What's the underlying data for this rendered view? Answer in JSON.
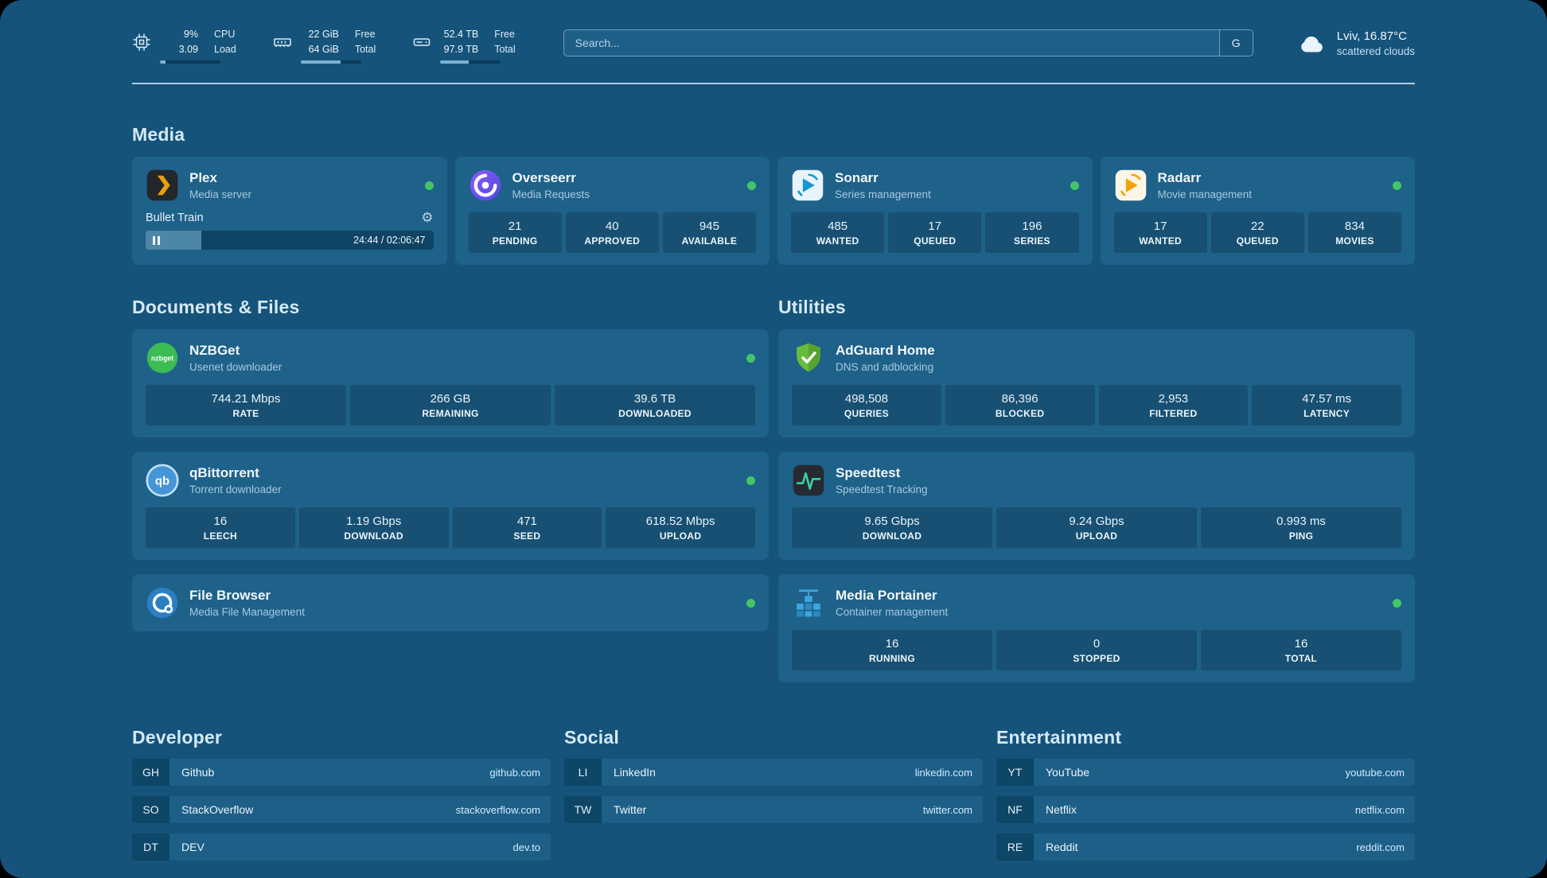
{
  "header": {
    "cpu": {
      "value_top": "9%",
      "value_bottom": "3.09",
      "label_top": "CPU",
      "label_bottom": "Load",
      "progress": 9
    },
    "memory": {
      "value_top": "22 GiB",
      "value_bottom": "64 GiB",
      "label_top": "Free",
      "label_bottom": "Total",
      "progress": 66
    },
    "disk": {
      "value_top": "52.4 TB",
      "value_bottom": "97.9 TB",
      "label_top": "Free",
      "label_bottom": "Total",
      "progress": 47
    },
    "search": {
      "placeholder": "Search...",
      "engine_button": "G"
    },
    "weather": {
      "location": "Lviv, 16.87°C",
      "condition": "scattered clouds"
    }
  },
  "sections": {
    "media": "Media",
    "documents": "Documents & Files",
    "utilities": "Utilities",
    "developer": "Developer",
    "social": "Social",
    "entertainment": "Entertainment"
  },
  "apps": {
    "plex": {
      "name": "Plex",
      "desc": "Media server",
      "now_playing": "Bullet Train",
      "time": "24:44 / 02:06:47",
      "progress": 19.5
    },
    "overseerr": {
      "name": "Overseerr",
      "desc": "Media Requests",
      "stats": [
        {
          "value": "21",
          "label": "PENDING"
        },
        {
          "value": "40",
          "label": "APPROVED"
        },
        {
          "value": "945",
          "label": "AVAILABLE"
        }
      ]
    },
    "sonarr": {
      "name": "Sonarr",
      "desc": "Series management",
      "stats": [
        {
          "value": "485",
          "label": "WANTED"
        },
        {
          "value": "17",
          "label": "QUEUED"
        },
        {
          "value": "196",
          "label": "SERIES"
        }
      ]
    },
    "radarr": {
      "name": "Radarr",
      "desc": "Movie management",
      "stats": [
        {
          "value": "17",
          "label": "WANTED"
        },
        {
          "value": "22",
          "label": "QUEUED"
        },
        {
          "value": "834",
          "label": "MOVIES"
        }
      ]
    },
    "nzbget": {
      "name": "NZBGet",
      "desc": "Usenet downloader",
      "icon_text": "nzbget",
      "stats": [
        {
          "value": "744.21 Mbps",
          "label": "RATE"
        },
        {
          "value": "266 GB",
          "label": "REMAINING"
        },
        {
          "value": "39.6 TB",
          "label": "DOWNLOADED"
        }
      ]
    },
    "qbittorrent": {
      "name": "qBittorrent",
      "desc": "Torrent downloader",
      "icon_text": "qb",
      "stats": [
        {
          "value": "16",
          "label": "LEECH"
        },
        {
          "value": "1.19 Gbps",
          "label": "DOWNLOAD"
        },
        {
          "value": "471",
          "label": "SEED"
        },
        {
          "value": "618.52 Mbps",
          "label": "UPLOAD"
        }
      ]
    },
    "filebrowser": {
      "name": "File Browser",
      "desc": "Media File Management"
    },
    "adguard": {
      "name": "AdGuard Home",
      "desc": "DNS and adblocking",
      "stats": [
        {
          "value": "498,508",
          "label": "QUERIES"
        },
        {
          "value": "86,396",
          "label": "BLOCKED"
        },
        {
          "value": "2,953",
          "label": "FILTERED"
        },
        {
          "value": "47.57 ms",
          "label": "LATENCY"
        }
      ]
    },
    "speedtest": {
      "name": "Speedtest",
      "desc": "Speedtest Tracking",
      "stats": [
        {
          "value": "9.65 Gbps",
          "label": "DOWNLOAD"
        },
        {
          "value": "9.24 Gbps",
          "label": "UPLOAD"
        },
        {
          "value": "0.993 ms",
          "label": "PING"
        }
      ]
    },
    "portainer": {
      "name": "Media Portainer",
      "desc": "Container management",
      "stats": [
        {
          "value": "16",
          "label": "RUNNING"
        },
        {
          "value": "0",
          "label": "STOPPED"
        },
        {
          "value": "16",
          "label": "TOTAL"
        }
      ]
    }
  },
  "bookmarks": {
    "developer": [
      {
        "abbr": "GH",
        "name": "Github",
        "url": "github.com"
      },
      {
        "abbr": "SO",
        "name": "StackOverflow",
        "url": "stackoverflow.com"
      },
      {
        "abbr": "DT",
        "name": "DEV",
        "url": "dev.to"
      }
    ],
    "social": [
      {
        "abbr": "LI",
        "name": "LinkedIn",
        "url": "linkedin.com"
      },
      {
        "abbr": "TW",
        "name": "Twitter",
        "url": "twitter.com"
      }
    ],
    "entertainment": [
      {
        "abbr": "YT",
        "name": "YouTube",
        "url": "youtube.com"
      },
      {
        "abbr": "NF",
        "name": "Netflix",
        "url": "netflix.com"
      },
      {
        "abbr": "RE",
        "name": "Reddit",
        "url": "reddit.com"
      }
    ]
  },
  "colors": {
    "status_online": "#43c667",
    "page_background": "#15537a",
    "card_background": "#1e6189"
  }
}
